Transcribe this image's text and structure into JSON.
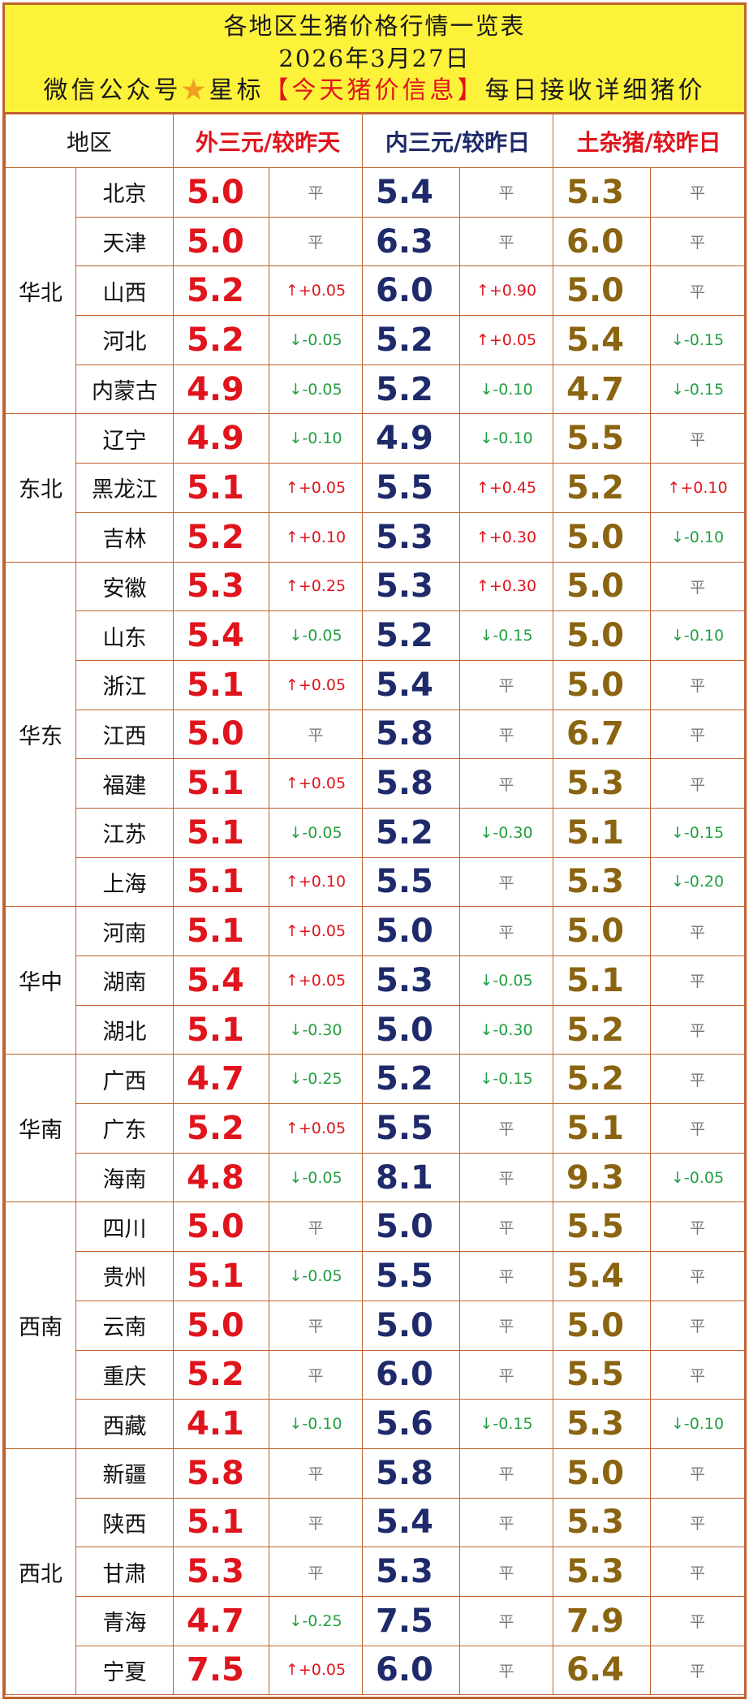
{
  "banner": {
    "line1": "各地区生猪价格行情一览表",
    "line2": "2026年3月27日",
    "line3_pre": "微信公众号",
    "line3_star": "★",
    "line3_mid": "星标",
    "line3_hl": "【今天猪价信息】",
    "line3_post": "每日接收详细猪价"
  },
  "headers": {
    "region": "地区",
    "out": "外三元/较昨天",
    "in": "内三元/较昨日",
    "tu": "土杂猪/较昨日"
  },
  "groups": [
    {
      "region": "华北",
      "rows": [
        {
          "prov": "北京",
          "out": "5.0",
          "out_chg": "平",
          "in": "5.4",
          "in_chg": "平",
          "tu": "5.3",
          "tu_chg": "平"
        },
        {
          "prov": "天津",
          "out": "5.0",
          "out_chg": "平",
          "in": "6.3",
          "in_chg": "平",
          "tu": "6.0",
          "tu_chg": "平"
        },
        {
          "prov": "山西",
          "out": "5.2",
          "out_chg": "↑+0.05",
          "in": "6.0",
          "in_chg": "↑+0.90",
          "tu": "5.0",
          "tu_chg": "平"
        },
        {
          "prov": "河北",
          "out": "5.2",
          "out_chg": "↓-0.05",
          "in": "5.2",
          "in_chg": "↑+0.05",
          "tu": "5.4",
          "tu_chg": "↓-0.15"
        },
        {
          "prov": "内蒙古",
          "out": "4.9",
          "out_chg": "↓-0.05",
          "in": "5.2",
          "in_chg": "↓-0.10",
          "tu": "4.7",
          "tu_chg": "↓-0.15"
        }
      ]
    },
    {
      "region": "东北",
      "rows": [
        {
          "prov": "辽宁",
          "out": "4.9",
          "out_chg": "↓-0.10",
          "in": "4.9",
          "in_chg": "↓-0.10",
          "tu": "5.5",
          "tu_chg": "平"
        },
        {
          "prov": "黑龙江",
          "out": "5.1",
          "out_chg": "↑+0.05",
          "in": "5.5",
          "in_chg": "↑+0.45",
          "tu": "5.2",
          "tu_chg": "↑+0.10"
        },
        {
          "prov": "吉林",
          "out": "5.2",
          "out_chg": "↑+0.10",
          "in": "5.3",
          "in_chg": "↑+0.30",
          "tu": "5.0",
          "tu_chg": "↓-0.10"
        }
      ]
    },
    {
      "region": "华东",
      "rows": [
        {
          "prov": "安徽",
          "out": "5.3",
          "out_chg": "↑+0.25",
          "in": "5.3",
          "in_chg": "↑+0.30",
          "tu": "5.0",
          "tu_chg": "平"
        },
        {
          "prov": "山东",
          "out": "5.4",
          "out_chg": "↓-0.05",
          "in": "5.2",
          "in_chg": "↓-0.15",
          "tu": "5.0",
          "tu_chg": "↓-0.10"
        },
        {
          "prov": "浙江",
          "out": "5.1",
          "out_chg": "↑+0.05",
          "in": "5.4",
          "in_chg": "平",
          "tu": "5.0",
          "tu_chg": "平"
        },
        {
          "prov": "江西",
          "out": "5.0",
          "out_chg": "平",
          "in": "5.8",
          "in_chg": "平",
          "tu": "6.7",
          "tu_chg": "平"
        },
        {
          "prov": "福建",
          "out": "5.1",
          "out_chg": "↑+0.05",
          "in": "5.8",
          "in_chg": "平",
          "tu": "5.3",
          "tu_chg": "平"
        },
        {
          "prov": "江苏",
          "out": "5.1",
          "out_chg": "↓-0.05",
          "in": "5.2",
          "in_chg": "↓-0.30",
          "tu": "5.1",
          "tu_chg": "↓-0.15"
        },
        {
          "prov": "上海",
          "out": "5.1",
          "out_chg": "↑+0.10",
          "in": "5.5",
          "in_chg": "平",
          "tu": "5.3",
          "tu_chg": "↓-0.20"
        }
      ]
    },
    {
      "region": "华中",
      "rows": [
        {
          "prov": "河南",
          "out": "5.1",
          "out_chg": "↑+0.05",
          "in": "5.0",
          "in_chg": "平",
          "tu": "5.0",
          "tu_chg": "平"
        },
        {
          "prov": "湖南",
          "out": "5.4",
          "out_chg": "↑+0.05",
          "in": "5.3",
          "in_chg": "↓-0.05",
          "tu": "5.1",
          "tu_chg": "平"
        },
        {
          "prov": "湖北",
          "out": "5.1",
          "out_chg": "↓-0.30",
          "in": "5.0",
          "in_chg": "↓-0.30",
          "tu": "5.2",
          "tu_chg": "平"
        }
      ]
    },
    {
      "region": "华南",
      "rows": [
        {
          "prov": "广西",
          "out": "4.7",
          "out_chg": "↓-0.25",
          "in": "5.2",
          "in_chg": "↓-0.15",
          "tu": "5.2",
          "tu_chg": "平"
        },
        {
          "prov": "广东",
          "out": "5.2",
          "out_chg": "↑+0.05",
          "in": "5.5",
          "in_chg": "平",
          "tu": "5.1",
          "tu_chg": "平"
        },
        {
          "prov": "海南",
          "out": "4.8",
          "out_chg": "↓-0.05",
          "in": "8.1",
          "in_chg": "平",
          "tu": "9.3",
          "tu_chg": "↓-0.05"
        }
      ]
    },
    {
      "region": "西南",
      "rows": [
        {
          "prov": "四川",
          "out": "5.0",
          "out_chg": "平",
          "in": "5.0",
          "in_chg": "平",
          "tu": "5.5",
          "tu_chg": "平"
        },
        {
          "prov": "贵州",
          "out": "5.1",
          "out_chg": "↓-0.05",
          "in": "5.5",
          "in_chg": "平",
          "tu": "5.4",
          "tu_chg": "平"
        },
        {
          "prov": "云南",
          "out": "5.0",
          "out_chg": "平",
          "in": "5.0",
          "in_chg": "平",
          "tu": "5.0",
          "tu_chg": "平"
        },
        {
          "prov": "重庆",
          "out": "5.2",
          "out_chg": "平",
          "in": "6.0",
          "in_chg": "平",
          "tu": "5.5",
          "tu_chg": "平"
        },
        {
          "prov": "西藏",
          "out": "4.1",
          "out_chg": "↓-0.10",
          "in": "5.6",
          "in_chg": "↓-0.15",
          "tu": "5.3",
          "tu_chg": "↓-0.10"
        }
      ]
    },
    {
      "region": "西北",
      "rows": [
        {
          "prov": "新疆",
          "out": "5.8",
          "out_chg": "平",
          "in": "5.8",
          "in_chg": "平",
          "tu": "5.0",
          "tu_chg": "平"
        },
        {
          "prov": "陕西",
          "out": "5.1",
          "out_chg": "平",
          "in": "5.4",
          "in_chg": "平",
          "tu": "5.3",
          "tu_chg": "平"
        },
        {
          "prov": "甘肃",
          "out": "5.3",
          "out_chg": "平",
          "in": "5.3",
          "in_chg": "平",
          "tu": "5.3",
          "tu_chg": "平"
        },
        {
          "prov": "青海",
          "out": "4.7",
          "out_chg": "↓-0.25",
          "in": "7.5",
          "in_chg": "平",
          "tu": "7.9",
          "tu_chg": "平"
        },
        {
          "prov": "宁夏",
          "out": "7.5",
          "out_chg": "↑+0.05",
          "in": "6.0",
          "in_chg": "平",
          "tu": "6.4",
          "tu_chg": "平"
        }
      ]
    }
  ]
}
